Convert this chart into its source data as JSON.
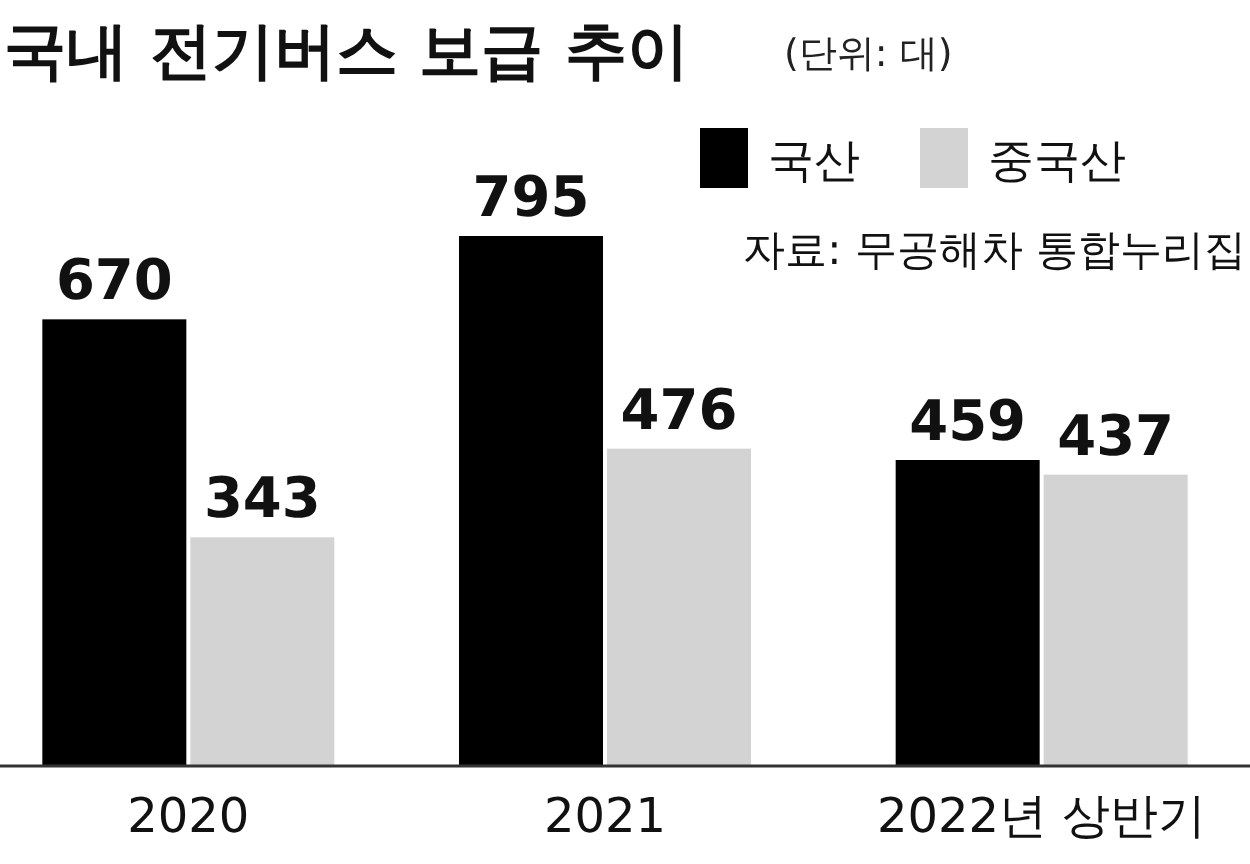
{
  "chart_data": {
    "type": "bar",
    "title": "국내 전기버스 보급 추이",
    "subtitle": "(단위:  대)",
    "annotations": [
      "자료: 무공해차 통합누리집"
    ],
    "categories": [
      "2020",
      "2021",
      "2022년 상반기"
    ],
    "series": [
      {
        "name": "국산",
        "color": "#000000",
        "values": [
          670,
          795,
          459
        ]
      },
      {
        "name": "중국산",
        "color": "#d3d3d3",
        "values": [
          343,
          476,
          437
        ]
      }
    ],
    "data_labels": true,
    "legend": "top right"
  }
}
